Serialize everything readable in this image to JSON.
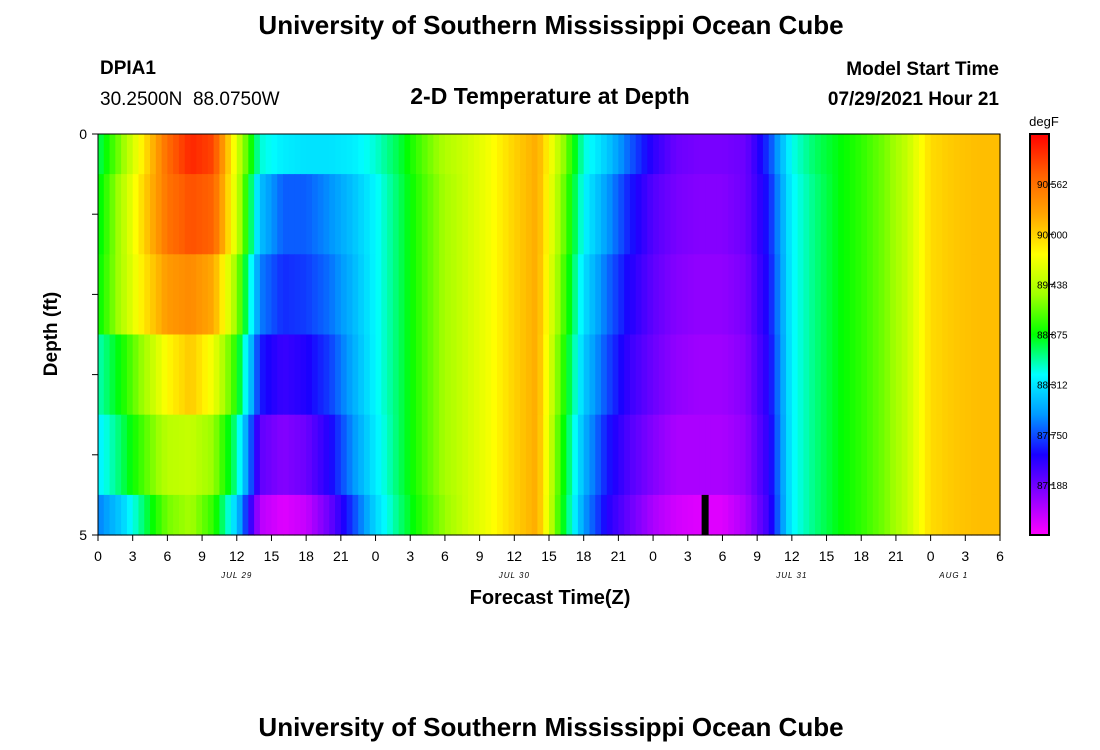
{
  "header": {
    "title": "University of Southern Mississippi Ocean Cube",
    "station_id": "DPIA1",
    "coordinates": "30.2500N  88.0750W",
    "plot_title": "2-D Temperature at Depth",
    "model_start_label": "Model Start Time",
    "model_start_value": "07/29/2021 Hour 21"
  },
  "footer": {
    "title": "University of Southern Mississippi Ocean Cube"
  },
  "chart_data": {
    "type": "heatmap",
    "xlabel": "Forecast Time(Z)",
    "ylabel": "Depth (ft)",
    "x_unit": "hours from 00Z Jul 29",
    "x_range": [
      0,
      78
    ],
    "y_range": [
      0,
      5
    ],
    "y_tick_labels": [
      "0",
      "5"
    ],
    "x_tick_labels": [
      "0",
      "3",
      "6",
      "9",
      "12",
      "15",
      "18",
      "21",
      "0",
      "3",
      "6",
      "9",
      "12",
      "15",
      "18",
      "21",
      "0",
      "3",
      "6",
      "9",
      "12",
      "15",
      "18",
      "21",
      "0",
      "3",
      "6"
    ],
    "date_labels": [
      "JUL 29",
      "JUL 30",
      "JUL 31",
      "AUG 1"
    ],
    "colorbar": {
      "unit": "degF",
      "min": 86.625,
      "max": 91.125,
      "tick_labels": [
        "90.562",
        "90.000",
        "89.438",
        "88.875",
        "88.312",
        "87.750",
        "87.188"
      ],
      "tick_values": [
        90.562,
        90.0,
        89.438,
        88.875,
        88.312,
        87.75,
        87.188
      ],
      "colors": [
        "#ff00ff",
        "#8b00ff",
        "#1a00ff",
        "#0099ff",
        "#00ffff",
        "#00ff00",
        "#a0ff00",
        "#ffff00",
        "#ffa500",
        "#ff6000",
        "#ff0000"
      ]
    },
    "depth_rows": [
      0,
      1,
      2,
      3,
      4,
      5
    ],
    "times": [
      0,
      2,
      4,
      6,
      8,
      10,
      12,
      14,
      16,
      18,
      20,
      22,
      24,
      26,
      28,
      30,
      32,
      34,
      36,
      38,
      40,
      42,
      44,
      46,
      48,
      50,
      52,
      54,
      56,
      58,
      60,
      62,
      64,
      66,
      68,
      70,
      72,
      74,
      76,
      78
    ],
    "values": [
      [
        88.7,
        89.25,
        89.9,
        90.6,
        90.95,
        90.8,
        89.6,
        88.5,
        88.35,
        88.3,
        88.3,
        88.35,
        88.5,
        88.75,
        89.1,
        89.4,
        89.55,
        89.75,
        90.0,
        90.2,
        89.4,
        88.5,
        88.2,
        87.8,
        87.45,
        87.2,
        87.15,
        87.15,
        87.2,
        87.7,
        88.45,
        88.7,
        88.85,
        89.0,
        89.2,
        89.5,
        89.95,
        90.05,
        90.1,
        90.1
      ],
      [
        88.8,
        89.4,
        90.0,
        90.55,
        90.75,
        90.65,
        89.55,
        88.15,
        87.8,
        87.8,
        87.95,
        88.15,
        88.4,
        88.7,
        89.05,
        89.35,
        89.55,
        89.75,
        90.0,
        90.2,
        89.3,
        88.4,
        88.0,
        87.6,
        87.3,
        87.15,
        87.1,
        87.1,
        87.2,
        87.6,
        88.4,
        88.65,
        88.85,
        89.0,
        89.2,
        89.5,
        89.95,
        90.05,
        90.1,
        90.1
      ],
      [
        88.85,
        89.4,
        89.9,
        90.3,
        90.4,
        90.2,
        89.3,
        87.9,
        87.65,
        87.7,
        87.85,
        88.1,
        88.4,
        88.7,
        89.05,
        89.35,
        89.55,
        89.75,
        90.0,
        90.2,
        89.2,
        88.3,
        87.85,
        87.5,
        87.25,
        87.1,
        87.05,
        87.05,
        87.15,
        87.55,
        88.4,
        88.65,
        88.85,
        89.0,
        89.2,
        89.5,
        89.95,
        90.05,
        90.1,
        90.1
      ],
      [
        88.55,
        88.9,
        89.35,
        89.8,
        90.05,
        89.7,
        88.95,
        87.6,
        87.4,
        87.5,
        87.7,
        88.05,
        88.4,
        88.7,
        89.05,
        89.35,
        89.55,
        89.75,
        90.0,
        90.2,
        89.1,
        88.2,
        87.75,
        87.4,
        87.2,
        87.05,
        87.0,
        87.0,
        87.1,
        87.5,
        88.4,
        88.65,
        88.85,
        89.0,
        89.2,
        89.5,
        89.95,
        90.05,
        90.1,
        90.1
      ],
      [
        88.35,
        88.7,
        89.1,
        89.45,
        89.5,
        89.3,
        88.6,
        87.25,
        87.1,
        87.2,
        87.5,
        87.95,
        88.35,
        88.7,
        89.05,
        89.35,
        89.55,
        89.75,
        90.0,
        90.2,
        89.0,
        88.1,
        87.6,
        87.3,
        87.1,
        86.95,
        86.95,
        86.95,
        87.05,
        87.45,
        88.4,
        88.65,
        88.85,
        89.0,
        89.2,
        89.5,
        89.95,
        90.05,
        90.1,
        90.1
      ],
      [
        87.9,
        88.2,
        88.7,
        89.2,
        89.35,
        89.0,
        88.2,
        86.9,
        86.75,
        86.85,
        87.2,
        87.7,
        88.25,
        88.65,
        89.0,
        89.3,
        89.55,
        89.75,
        90.0,
        90.2,
        88.95,
        88.0,
        87.5,
        87.2,
        86.95,
        86.8,
        86.75,
        86.75,
        86.95,
        87.4,
        88.4,
        88.65,
        88.85,
        89.0,
        89.2,
        89.5,
        89.95,
        90.05,
        90.1,
        90.1
      ]
    ],
    "marker": {
      "x": 52.5,
      "depth_from": 4.5,
      "depth_to": 5.0
    }
  }
}
